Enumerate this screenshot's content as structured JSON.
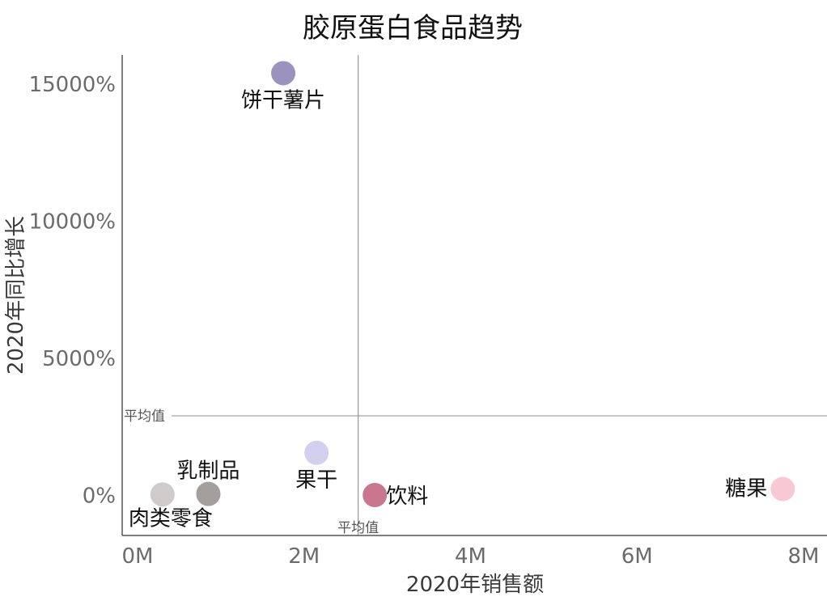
{
  "chart_data": {
    "type": "scatter",
    "title": "胶原蛋白食品趋势",
    "xlabel": "2020年销售额",
    "ylabel": "2020年同比增长",
    "xlim": [
      0,
      8000000
    ],
    "ylim": [
      -1200,
      16800
    ],
    "x_ticks": [
      {
        "value": 0,
        "label": "0M"
      },
      {
        "value": 2000000,
        "label": "2M"
      },
      {
        "value": 4000000,
        "label": "4M"
      },
      {
        "value": 6000000,
        "label": "6M"
      },
      {
        "value": 8000000,
        "label": "8M"
      }
    ],
    "y_ticks": [
      {
        "value": 0,
        "label": "0%"
      },
      {
        "value": 5000,
        "label": "5000%"
      },
      {
        "value": 10000,
        "label": "10000%"
      },
      {
        "value": 15000,
        "label": "15000%"
      }
    ],
    "points": [
      {
        "name": "饼干薯片",
        "x": 1750000,
        "y": 15400,
        "color": "#9b93be",
        "label_pos": "below"
      },
      {
        "name": "果干",
        "x": 2150000,
        "y": 1550,
        "color": "#d3d0ef",
        "label_pos": "below"
      },
      {
        "name": "乳制品",
        "x": 850000,
        "y": 50,
        "color": "#a49e9d",
        "label_pos": "above"
      },
      {
        "name": "肉类零食",
        "x": 300000,
        "y": 30,
        "color": "#cfcbcb",
        "label_pos": "below"
      },
      {
        "name": "饮料",
        "x": 2850000,
        "y": 10,
        "color": "#c9778f",
        "label_pos": "right"
      },
      {
        "name": "糖果",
        "x": 7750000,
        "y": 230,
        "color": "#f8c9d4",
        "label_pos": "left"
      }
    ],
    "reference_lines": {
      "x_mean": 2650000,
      "y_mean": 2900,
      "x_label": "平均值",
      "y_label": "平均值"
    },
    "grid": false,
    "legend": "none"
  }
}
